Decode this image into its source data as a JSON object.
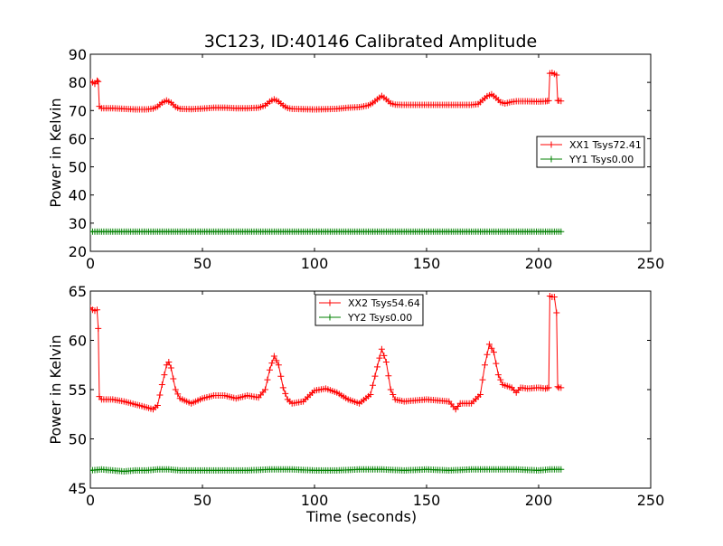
{
  "title": "3C123, ID:40146 Calibrated Amplitude",
  "colors": {
    "xx": "#ff0000",
    "yy": "#008000",
    "axes": "#000000",
    "background": "#ffffff"
  },
  "chart_data": [
    {
      "type": "line",
      "title": "3C123, ID:40146 Calibrated Amplitude",
      "xlabel": "",
      "ylabel": "Power in Kelvin",
      "xlim": [
        0,
        250
      ],
      "ylim": [
        20,
        90
      ],
      "xticks": [
        "0",
        "50",
        "100",
        "150",
        "200",
        "250"
      ],
      "yticks": [
        "20",
        "30",
        "40",
        "50",
        "60",
        "70",
        "80",
        "90"
      ],
      "grid": false,
      "legend_position": "center-right",
      "series": [
        {
          "name": "XX1 Tsys72.41",
          "color": "#ff0000",
          "marker": "+",
          "points": [
            [
              0,
              80.3
            ],
            [
              1,
              80.0
            ],
            [
              2,
              79.5
            ],
            [
              3,
              80.6
            ],
            [
              3.5,
              80.3
            ],
            [
              4,
              71.5
            ],
            [
              5,
              70.8
            ],
            [
              10,
              70.8
            ],
            [
              15,
              70.6
            ],
            [
              20,
              70.4
            ],
            [
              25,
              70.4
            ],
            [
              28,
              70.7
            ],
            [
              30,
              71.4
            ],
            [
              32,
              72.8
            ],
            [
              34,
              73.6
            ],
            [
              36,
              72.8
            ],
            [
              38,
              71.3
            ],
            [
              40,
              70.6
            ],
            [
              45,
              70.5
            ],
            [
              50,
              70.7
            ],
            [
              55,
              71.0
            ],
            [
              60,
              71.0
            ],
            [
              65,
              70.8
            ],
            [
              70,
              70.8
            ],
            [
              75,
              71.0
            ],
            [
              78,
              71.8
            ],
            [
              80,
              73.2
            ],
            [
              82,
              74.0
            ],
            [
              84,
              73.2
            ],
            [
              86,
              71.8
            ],
            [
              88,
              70.9
            ],
            [
              90,
              70.6
            ],
            [
              100,
              70.4
            ],
            [
              110,
              70.6
            ],
            [
              115,
              71.0
            ],
            [
              120,
              71.2
            ],
            [
              124,
              71.8
            ],
            [
              126,
              72.7
            ],
            [
              128,
              74.0
            ],
            [
              130,
              75.2
            ],
            [
              132,
              74.0
            ],
            [
              134,
              72.6
            ],
            [
              136,
              72.1
            ],
            [
              140,
              72.0
            ],
            [
              150,
              72.0
            ],
            [
              160,
              72.0
            ],
            [
              170,
              72.0
            ],
            [
              173,
              72.3
            ],
            [
              175,
              73.7
            ],
            [
              177,
              75.1
            ],
            [
              179,
              75.8
            ],
            [
              181,
              74.5
            ],
            [
              183,
              73.0
            ],
            [
              185,
              72.5
            ],
            [
              188,
              73.1
            ],
            [
              190,
              73.3
            ],
            [
              195,
              73.3
            ],
            [
              200,
              73.2
            ],
            [
              203,
              73.3
            ],
            [
              204.5,
              73.5
            ],
            [
              205,
              83.2
            ],
            [
              206,
              83.4
            ],
            [
              207,
              83.0
            ],
            [
              208,
              82.6
            ],
            [
              208.5,
              73.6
            ],
            [
              209,
              73.5
            ],
            [
              210,
              73.4
            ]
          ]
        },
        {
          "name": "YY1 Tsys0.00",
          "color": "#008000",
          "marker": "+",
          "points": [
            [
              0,
              27.0
            ],
            [
              10,
              27.0
            ],
            [
              20,
              27.0
            ],
            [
              30,
              27.0
            ],
            [
              40,
              27.0
            ],
            [
              50,
              27.0
            ],
            [
              60,
              27.0
            ],
            [
              70,
              27.0
            ],
            [
              80,
              27.0
            ],
            [
              90,
              27.0
            ],
            [
              100,
              27.0
            ],
            [
              110,
              27.0
            ],
            [
              120,
              27.0
            ],
            [
              130,
              27.0
            ],
            [
              140,
              27.0
            ],
            [
              150,
              27.0
            ],
            [
              160,
              27.0
            ],
            [
              170,
              27.0
            ],
            [
              180,
              27.0
            ],
            [
              190,
              27.0
            ],
            [
              200,
              27.0
            ],
            [
              210,
              27.0
            ]
          ]
        }
      ]
    },
    {
      "type": "line",
      "title": "",
      "xlabel": "Time (seconds)",
      "ylabel": "Power in Kelvin",
      "xlim": [
        0,
        250
      ],
      "ylim": [
        45,
        65
      ],
      "xticks": [
        "0",
        "50",
        "100",
        "150",
        "200",
        "250"
      ],
      "yticks": [
        "45",
        "50",
        "55",
        "60",
        "65"
      ],
      "grid": false,
      "legend_position": "top-center",
      "series": [
        {
          "name": "XX2 Tsys54.64",
          "color": "#ff0000",
          "marker": "+",
          "points": [
            [
              0,
              63.3
            ],
            [
              1,
              63.1
            ],
            [
              2,
              63.0
            ],
            [
              3,
              63.1
            ],
            [
              3.5,
              61.2
            ],
            [
              4,
              54.3
            ],
            [
              5,
              54.0
            ],
            [
              10,
              54.0
            ],
            [
              15,
              53.8
            ],
            [
              20,
              53.5
            ],
            [
              25,
              53.2
            ],
            [
              28,
              53.0
            ],
            [
              30,
              53.4
            ],
            [
              32,
              55.5
            ],
            [
              34,
              57.5
            ],
            [
              35,
              57.8
            ],
            [
              36,
              57.2
            ],
            [
              38,
              55.0
            ],
            [
              40,
              54.1
            ],
            [
              45,
              53.6
            ],
            [
              50,
              54.1
            ],
            [
              55,
              54.4
            ],
            [
              60,
              54.4
            ],
            [
              65,
              54.1
            ],
            [
              70,
              54.4
            ],
            [
              75,
              54.2
            ],
            [
              78,
              55.0
            ],
            [
              80,
              57.0
            ],
            [
              82,
              58.4
            ],
            [
              84,
              57.5
            ],
            [
              86,
              55.2
            ],
            [
              88,
              54.0
            ],
            [
              90,
              53.6
            ],
            [
              95,
              53.8
            ],
            [
              100,
              54.9
            ],
            [
              105,
              55.1
            ],
            [
              110,
              54.7
            ],
            [
              115,
              54.0
            ],
            [
              120,
              53.6
            ],
            [
              125,
              54.5
            ],
            [
              128,
              57.3
            ],
            [
              130,
              59.1
            ],
            [
              132,
              57.8
            ],
            [
              134,
              55.0
            ],
            [
              136,
              54.0
            ],
            [
              140,
              53.8
            ],
            [
              150,
              54.0
            ],
            [
              155,
              53.9
            ],
            [
              160,
              53.8
            ],
            [
              163,
              53.0
            ],
            [
              165,
              53.6
            ],
            [
              170,
              53.6
            ],
            [
              174,
              54.5
            ],
            [
              176,
              57.5
            ],
            [
              178,
              59.6
            ],
            [
              180,
              58.8
            ],
            [
              182,
              56.5
            ],
            [
              184,
              55.5
            ],
            [
              188,
              55.2
            ],
            [
              190,
              54.7
            ],
            [
              192,
              55.2
            ],
            [
              195,
              55.1
            ],
            [
              200,
              55.2
            ],
            [
              203,
              55.1
            ],
            [
              204.5,
              55.2
            ],
            [
              205,
              64.5
            ],
            [
              206,
              64.4
            ],
            [
              207,
              64.4
            ],
            [
              208,
              62.8
            ],
            [
              208.5,
              55.3
            ],
            [
              209,
              55.2
            ],
            [
              210,
              55.2
            ]
          ]
        },
        {
          "name": "YY2 Tsys0.00",
          "color": "#008000",
          "marker": "+",
          "points": [
            [
              0,
              46.8
            ],
            [
              5,
              46.9
            ],
            [
              10,
              46.8
            ],
            [
              15,
              46.7
            ],
            [
              20,
              46.8
            ],
            [
              25,
              46.8
            ],
            [
              30,
              46.9
            ],
            [
              35,
              46.9
            ],
            [
              40,
              46.8
            ],
            [
              45,
              46.8
            ],
            [
              50,
              46.8
            ],
            [
              55,
              46.8
            ],
            [
              60,
              46.8
            ],
            [
              70,
              46.8
            ],
            [
              80,
              46.9
            ],
            [
              90,
              46.9
            ],
            [
              100,
              46.8
            ],
            [
              110,
              46.8
            ],
            [
              120,
              46.9
            ],
            [
              130,
              46.9
            ],
            [
              140,
              46.8
            ],
            [
              150,
              46.9
            ],
            [
              160,
              46.8
            ],
            [
              170,
              46.9
            ],
            [
              180,
              46.9
            ],
            [
              190,
              46.9
            ],
            [
              200,
              46.8
            ],
            [
              205,
              46.9
            ],
            [
              210,
              46.9
            ]
          ]
        }
      ]
    }
  ]
}
